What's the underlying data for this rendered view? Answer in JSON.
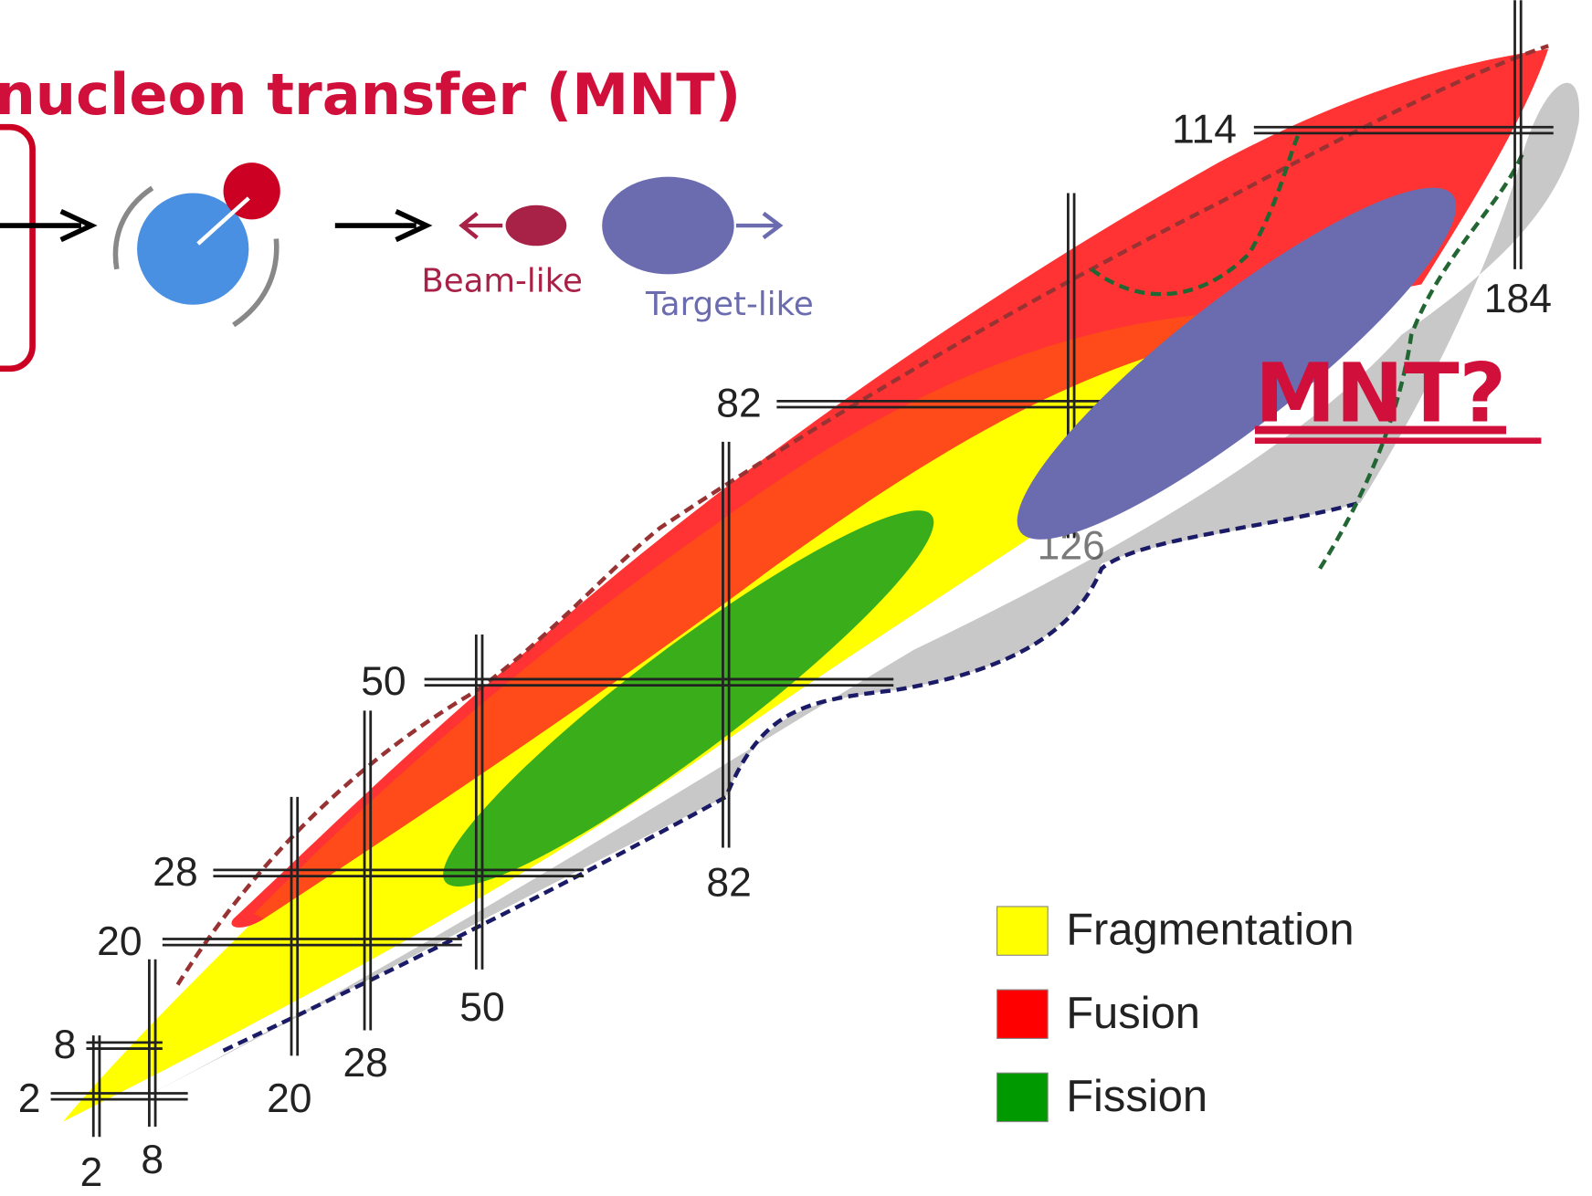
{
  "header": {
    "title": "nucleon transfer (MNT)"
  },
  "reaction": {
    "beam_like": "Beam-like",
    "target_like": "Target-like"
  },
  "annotation": "MNT?",
  "proton_magic": [
    2,
    8,
    20,
    28,
    50,
    82,
    114
  ],
  "neutron_magic": [
    2,
    8,
    20,
    28,
    50,
    82,
    126,
    184
  ],
  "legend": [
    {
      "label": "Fragmentation",
      "color": "#ffff00"
    },
    {
      "label": "Fusion",
      "color": "#ff0000"
    },
    {
      "label": "Fission",
      "color": "#009900"
    }
  ]
}
